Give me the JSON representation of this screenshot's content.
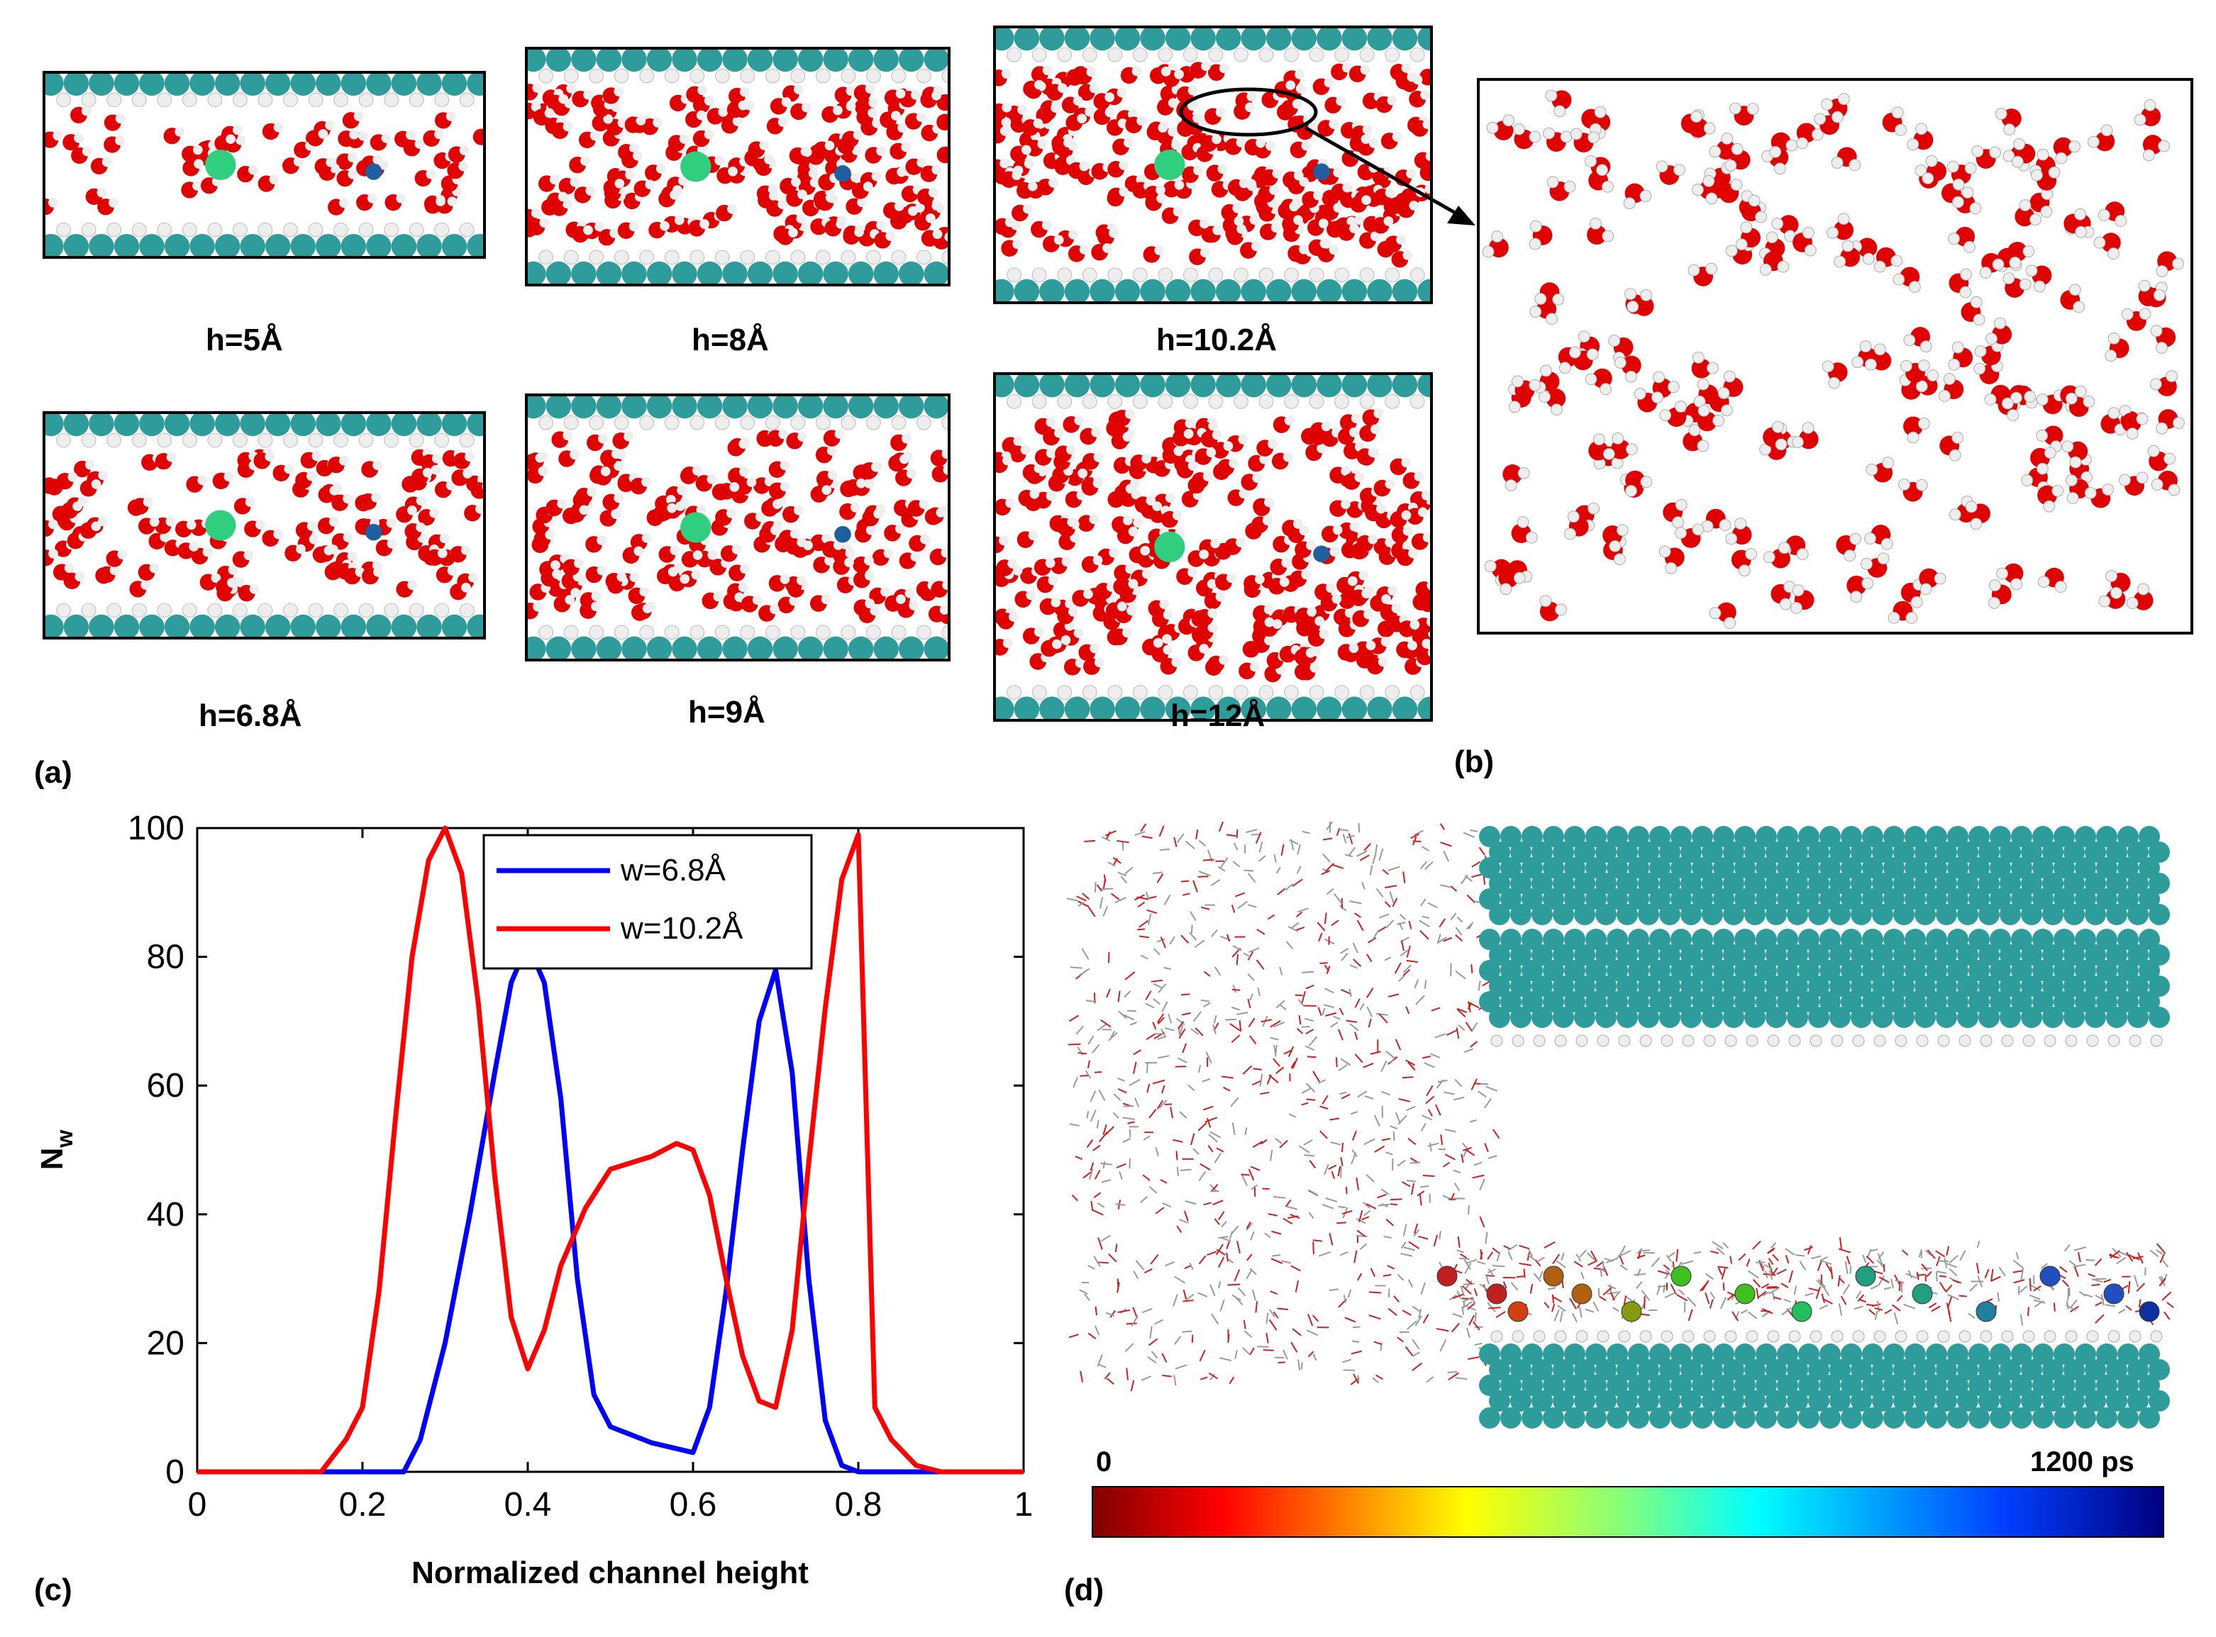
{
  "panel_a": {
    "label": "(a)",
    "snapshots": [
      {
        "caption": "h=5Å",
        "layers": 1
      },
      {
        "caption": "h=8Å",
        "layers": 3
      },
      {
        "caption": "h=10.2Å",
        "layers": 4
      },
      {
        "caption": "h=6.8Å",
        "layers": 2
      },
      {
        "caption": "h=9Å",
        "layers": 3
      },
      {
        "caption": "h=12Å",
        "layers": 5
      }
    ]
  },
  "panel_b": {
    "label": "(b)"
  },
  "panel_c": {
    "label": "(c)"
  },
  "panel_d": {
    "label": "(d)",
    "colorbar": {
      "min_label": "0",
      "max_label": "1200 ps"
    }
  },
  "colors": {
    "carbon": "#2f9c9c",
    "oxygen": "#e00000",
    "hydrogen": "#eeeeee",
    "blue_curve": "#0000ff",
    "red_curve": "#ff0000"
  },
  "chart_data": {
    "type": "line",
    "xlabel": "Normalized channel height",
    "ylabel": "N",
    "ylabel_subscript": "w",
    "xlim": [
      0,
      1
    ],
    "ylim": [
      0,
      100
    ],
    "xticks": [
      "0",
      "0.2",
      "0.4",
      "0.6",
      "0.8",
      "1"
    ],
    "yticks": [
      "0",
      "20",
      "40",
      "60",
      "80",
      "100"
    ],
    "legend_position": "top-center",
    "series": [
      {
        "name": "w=6.8Å",
        "color": "#0000ff",
        "x": [
          0,
          0.25,
          0.27,
          0.3,
          0.33,
          0.36,
          0.38,
          0.4,
          0.42,
          0.44,
          0.46,
          0.48,
          0.5,
          0.55,
          0.6,
          0.62,
          0.64,
          0.66,
          0.68,
          0.7,
          0.72,
          0.74,
          0.76,
          0.78,
          0.8,
          1.0
        ],
        "y": [
          0,
          0,
          5,
          20,
          40,
          62,
          76,
          82,
          76,
          58,
          30,
          12,
          7,
          4.5,
          3,
          10,
          28,
          50,
          70,
          78,
          62,
          30,
          8,
          1,
          0,
          0
        ]
      },
      {
        "name": "w=10.2Å",
        "color": "#ff0000",
        "x": [
          0,
          0.15,
          0.18,
          0.2,
          0.22,
          0.24,
          0.26,
          0.28,
          0.3,
          0.32,
          0.34,
          0.36,
          0.38,
          0.4,
          0.42,
          0.44,
          0.47,
          0.5,
          0.55,
          0.58,
          0.6,
          0.62,
          0.64,
          0.66,
          0.68,
          0.7,
          0.72,
          0.74,
          0.76,
          0.78,
          0.8,
          0.82,
          0.84,
          0.87,
          0.9,
          1.0
        ],
        "y": [
          0,
          0,
          5,
          10,
          28,
          55,
          80,
          95,
          100,
          93,
          73,
          46,
          24,
          16,
          22,
          32,
          41,
          47,
          49,
          51,
          50,
          43,
          30,
          18,
          11,
          10,
          22,
          48,
          72,
          92,
          99,
          10,
          5,
          1,
          0,
          0
        ]
      }
    ]
  }
}
